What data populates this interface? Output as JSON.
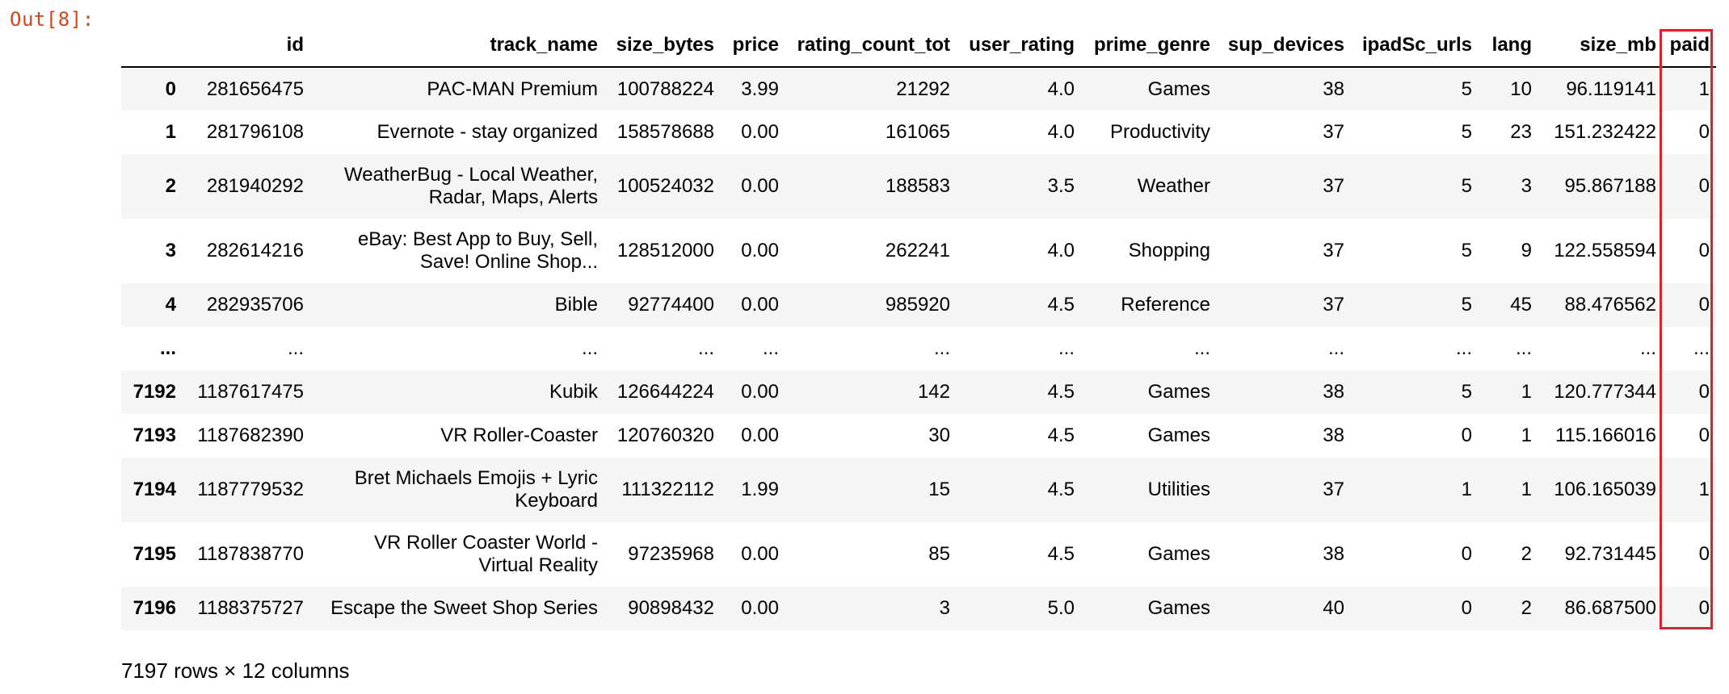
{
  "prompt": "Out[8]:",
  "accent_color": "#d84315",
  "highlight_color": "#e0202a",
  "columns": [
    "",
    "id",
    "track_name",
    "size_bytes",
    "price",
    "rating_count_tot",
    "user_rating",
    "prime_genre",
    "sup_devices",
    "ipadSc_urls",
    "lang",
    "size_mb",
    "paid"
  ],
  "rows": [
    {
      "index": "0",
      "cells": [
        "281656475",
        "PAC-MAN Premium",
        "100788224",
        "3.99",
        "21292",
        "4.0",
        "Games",
        "38",
        "5",
        "10",
        "96.119141",
        "1"
      ],
      "tall": false
    },
    {
      "index": "1",
      "cells": [
        "281796108",
        "Evernote - stay organized",
        "158578688",
        "0.00",
        "161065",
        "4.0",
        "Productivity",
        "37",
        "5",
        "23",
        "151.232422",
        "0"
      ],
      "tall": false
    },
    {
      "index": "2",
      "cells": [
        "281940292",
        "WeatherBug - Local Weather, Radar, Maps, Alerts",
        "100524032",
        "0.00",
        "188583",
        "3.5",
        "Weather",
        "37",
        "5",
        "3",
        "95.867188",
        "0"
      ],
      "tall": true
    },
    {
      "index": "3",
      "cells": [
        "282614216",
        "eBay: Best App to Buy, Sell, Save! Online Shop...",
        "128512000",
        "0.00",
        "262241",
        "4.0",
        "Shopping",
        "37",
        "5",
        "9",
        "122.558594",
        "0"
      ],
      "tall": true
    },
    {
      "index": "4",
      "cells": [
        "282935706",
        "Bible",
        "92774400",
        "0.00",
        "985920",
        "4.5",
        "Reference",
        "37",
        "5",
        "45",
        "88.476562",
        "0"
      ],
      "tall": false
    },
    {
      "index": "...",
      "cells": [
        "...",
        "...",
        "...",
        "...",
        "...",
        "...",
        "...",
        "...",
        "...",
        "...",
        "...",
        "..."
      ],
      "tall": false
    },
    {
      "index": "7192",
      "cells": [
        "1187617475",
        "Kubik",
        "126644224",
        "0.00",
        "142",
        "4.5",
        "Games",
        "38",
        "5",
        "1",
        "120.777344",
        "0"
      ],
      "tall": false
    },
    {
      "index": "7193",
      "cells": [
        "1187682390",
        "VR Roller-Coaster",
        "120760320",
        "0.00",
        "30",
        "4.5",
        "Games",
        "38",
        "0",
        "1",
        "115.166016",
        "0"
      ],
      "tall": false
    },
    {
      "index": "7194",
      "cells": [
        "1187779532",
        "Bret Michaels Emojis + Lyric Keyboard",
        "111322112",
        "1.99",
        "15",
        "4.5",
        "Utilities",
        "37",
        "1",
        "1",
        "106.165039",
        "1"
      ],
      "tall": true
    },
    {
      "index": "7195",
      "cells": [
        "1187838770",
        "VR Roller Coaster World - Virtual Reality",
        "97235968",
        "0.00",
        "85",
        "4.5",
        "Games",
        "38",
        "0",
        "2",
        "92.731445",
        "0"
      ],
      "tall": true
    },
    {
      "index": "7196",
      "cells": [
        "1188375727",
        "Escape the Sweet Shop Series",
        "90898432",
        "0.00",
        "3",
        "5.0",
        "Games",
        "40",
        "0",
        "2",
        "86.687500",
        "0"
      ],
      "tall": false
    }
  ],
  "footer": "7197 rows × 12 columns"
}
